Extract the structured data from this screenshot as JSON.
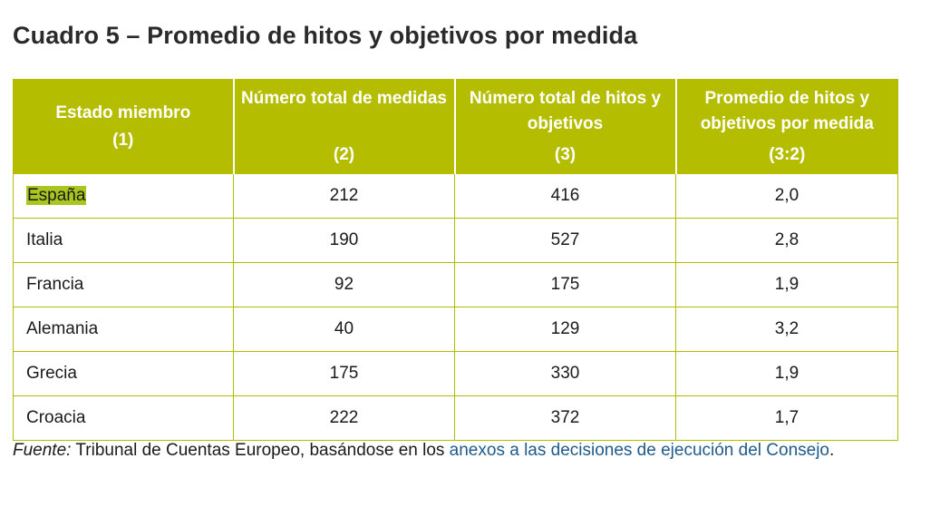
{
  "title": "Cuadro 5 – Promedio de hitos y objetivos por medida",
  "colors": {
    "header_bg": "#b5bd00",
    "border": "#b5bd00",
    "highlight": "#a9c51f",
    "link": "#1f5a8a"
  },
  "table": {
    "headers": [
      {
        "label": "Estado miembro",
        "num": "(1)"
      },
      {
        "label": "Número total de medidas",
        "num": "(2)"
      },
      {
        "label": "Número total de hitos y objetivos",
        "num": "(3)"
      },
      {
        "label": "Promedio de hitos y objetivos por medida",
        "num": "(3:2)"
      }
    ],
    "rows": [
      {
        "country": "España",
        "medidas": "212",
        "hitos": "416",
        "promedio": "2,0"
      },
      {
        "country": "Italia",
        "medidas": "190",
        "hitos": "527",
        "promedio": "2,8"
      },
      {
        "country": "Francia",
        "medidas": "92",
        "hitos": "175",
        "promedio": "1,9"
      },
      {
        "country": "Alemania",
        "medidas": "40",
        "hitos": "129",
        "promedio": "3,2"
      },
      {
        "country": "Grecia",
        "medidas": "175",
        "hitos": "330",
        "promedio": "1,9"
      },
      {
        "country": "Croacia",
        "medidas": "222",
        "hitos": "372",
        "promedio": "1,7"
      }
    ]
  },
  "source": {
    "label": "Fuente:",
    "text": " Tribunal de Cuentas Europeo, basándose en los ",
    "link": "anexos a las decisiones de ejecución del Consejo",
    "end": "."
  }
}
